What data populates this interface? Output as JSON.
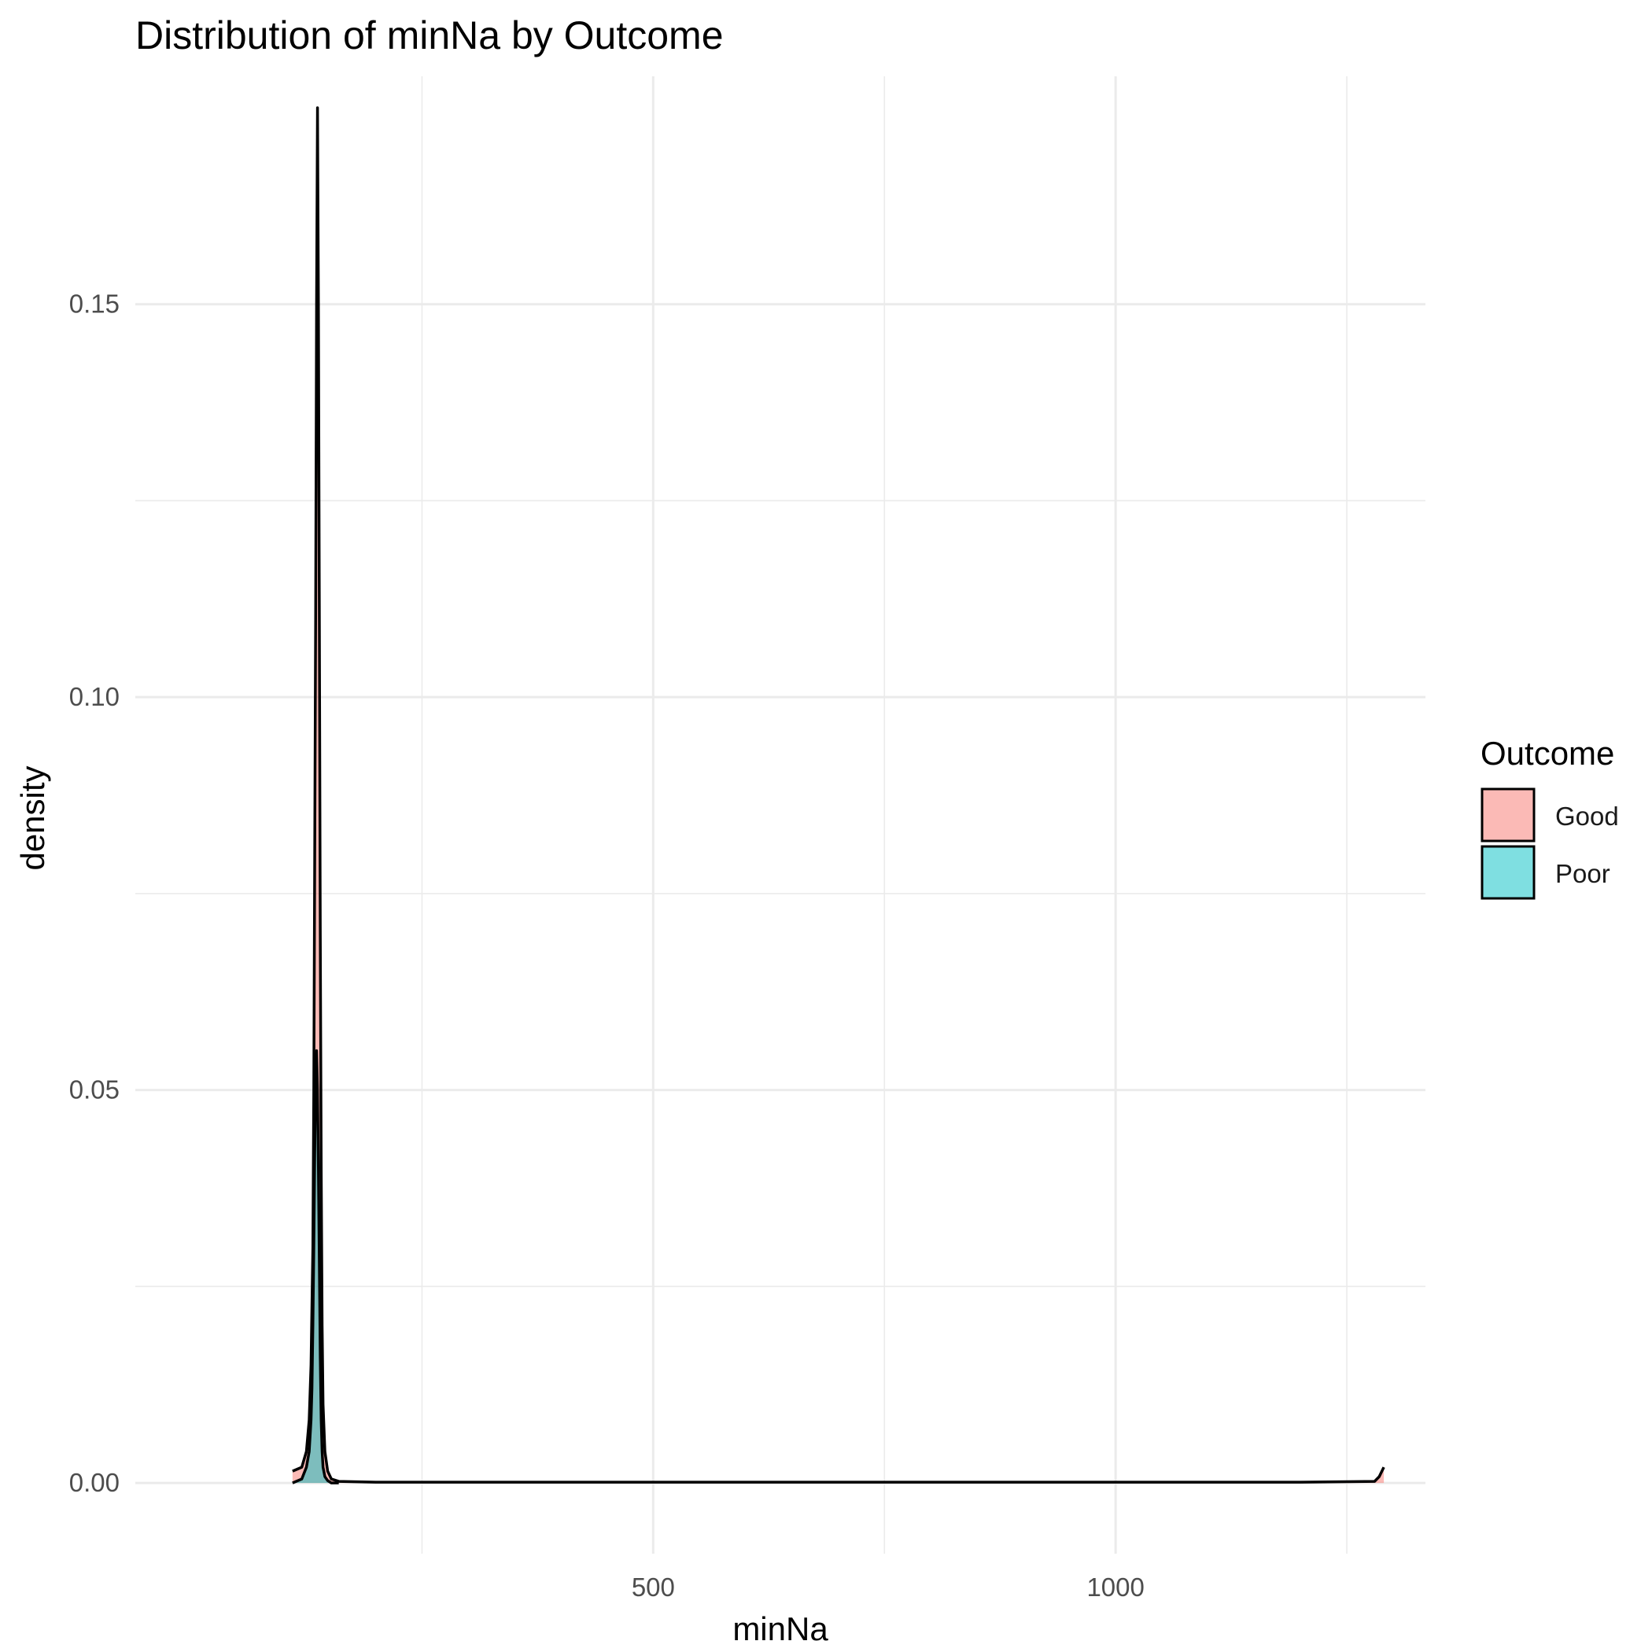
{
  "chart_data": {
    "type": "area",
    "title": "Distribution of minNa by Outcome",
    "xlabel": "minNa",
    "ylabel": "density",
    "xlim": [
      -60,
      1335
    ],
    "ylim": [
      -0.009,
      0.179
    ],
    "x_ticks": [
      500,
      1000
    ],
    "x_tick_labels": [
      "500",
      "1000"
    ],
    "x_minor_ticks": [
      250,
      750,
      1250
    ],
    "y_ticks": [
      0.0,
      0.05,
      0.1,
      0.15
    ],
    "y_tick_labels": [
      "0.00",
      "0.05",
      "0.10",
      "0.15"
    ],
    "y_minor_ticks": [
      0.025,
      0.075,
      0.125
    ],
    "grid": true,
    "legend": {
      "title": "Outcome",
      "placement": "right"
    },
    "series": [
      {
        "name": "Good",
        "color": "#F8766D",
        "x": [
          110,
          120,
          125,
          128,
          130,
          132,
          133,
          134,
          135,
          136,
          137,
          138,
          139,
          140,
          141,
          142,
          143,
          145,
          148,
          152,
          160,
          200,
          400,
          600,
          800,
          1000,
          1200,
          1280,
          1285,
          1290
        ],
        "y": [
          0.0015,
          0.002,
          0.004,
          0.008,
          0.015,
          0.03,
          0.05,
          0.08,
          0.11,
          0.15,
          0.175,
          0.15,
          0.11,
          0.07,
          0.04,
          0.02,
          0.01,
          0.004,
          0.0015,
          0.0005,
          0.0002,
          0.0001,
          0.0001,
          0.0001,
          0.0001,
          0.0001,
          0.0001,
          0.0002,
          0.0008,
          0.002
        ]
      },
      {
        "name": "Poor",
        "color": "#00BFC4",
        "x": [
          110,
          120,
          125,
          128,
          130,
          131,
          132,
          133,
          134,
          135,
          136,
          137,
          138,
          139,
          140,
          141,
          142,
          143,
          145,
          148,
          152,
          160
        ],
        "y": [
          0.0,
          0.0005,
          0.002,
          0.004,
          0.008,
          0.012,
          0.02,
          0.03,
          0.042,
          0.052,
          0.055,
          0.05,
          0.04,
          0.028,
          0.016,
          0.008,
          0.004,
          0.002,
          0.0008,
          0.0003,
          0.0,
          0.0
        ]
      }
    ]
  }
}
